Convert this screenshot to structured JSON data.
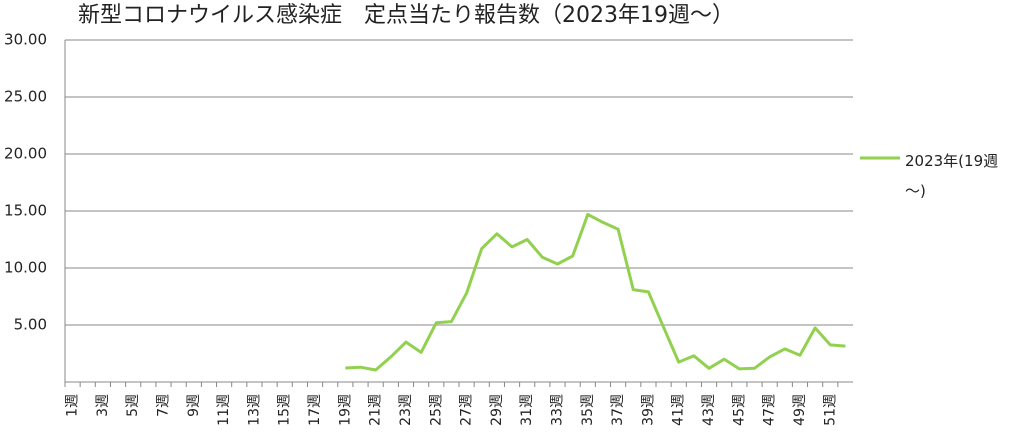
{
  "chart_data": {
    "type": "line",
    "title": "新型コロナウイルス感染症　定点当たり報告数（2023年19週～）",
    "categories": [
      "1週",
      null,
      "3週",
      null,
      "5週",
      null,
      "7週",
      null,
      "9週",
      null,
      "11週",
      null,
      "13週",
      null,
      "15週",
      null,
      "17週",
      null,
      "19週",
      null,
      "21週",
      null,
      "23週",
      null,
      "25週",
      null,
      "27週",
      null,
      "29週",
      null,
      "31週",
      null,
      "33週",
      null,
      "35週",
      null,
      "37週",
      null,
      "39週",
      null,
      "41週",
      null,
      "43週",
      null,
      "45週",
      null,
      "47週",
      null,
      "49週",
      null,
      "51週",
      null
    ],
    "series": [
      {
        "name": "2023年(19週～)",
        "color": "#92d050",
        "values": [
          null,
          null,
          null,
          null,
          null,
          null,
          null,
          null,
          null,
          null,
          null,
          null,
          null,
          null,
          null,
          null,
          null,
          null,
          1.23,
          1.3,
          1.05,
          2.2,
          3.5,
          2.6,
          5.2,
          5.3,
          7.8,
          11.7,
          13.0,
          11.85,
          12.5,
          10.95,
          10.35,
          11.05,
          14.7,
          14.0,
          13.4,
          8.1,
          7.9,
          4.8,
          1.75,
          2.3,
          1.2,
          2.0,
          1.15,
          1.2,
          2.2,
          2.9,
          2.35,
          4.75,
          3.25,
          3.15
        ]
      }
    ],
    "ylim": [
      0,
      30
    ],
    "yticks": [
      {
        "value": 5,
        "label": "5.00"
      },
      {
        "value": 10,
        "label": "10.00"
      },
      {
        "value": 15,
        "label": "15.00"
      },
      {
        "value": 20,
        "label": "20.00"
      },
      {
        "value": 25,
        "label": "25.00"
      },
      {
        "value": 30,
        "label": "30.00"
      }
    ],
    "grid": true,
    "legend": "right"
  }
}
